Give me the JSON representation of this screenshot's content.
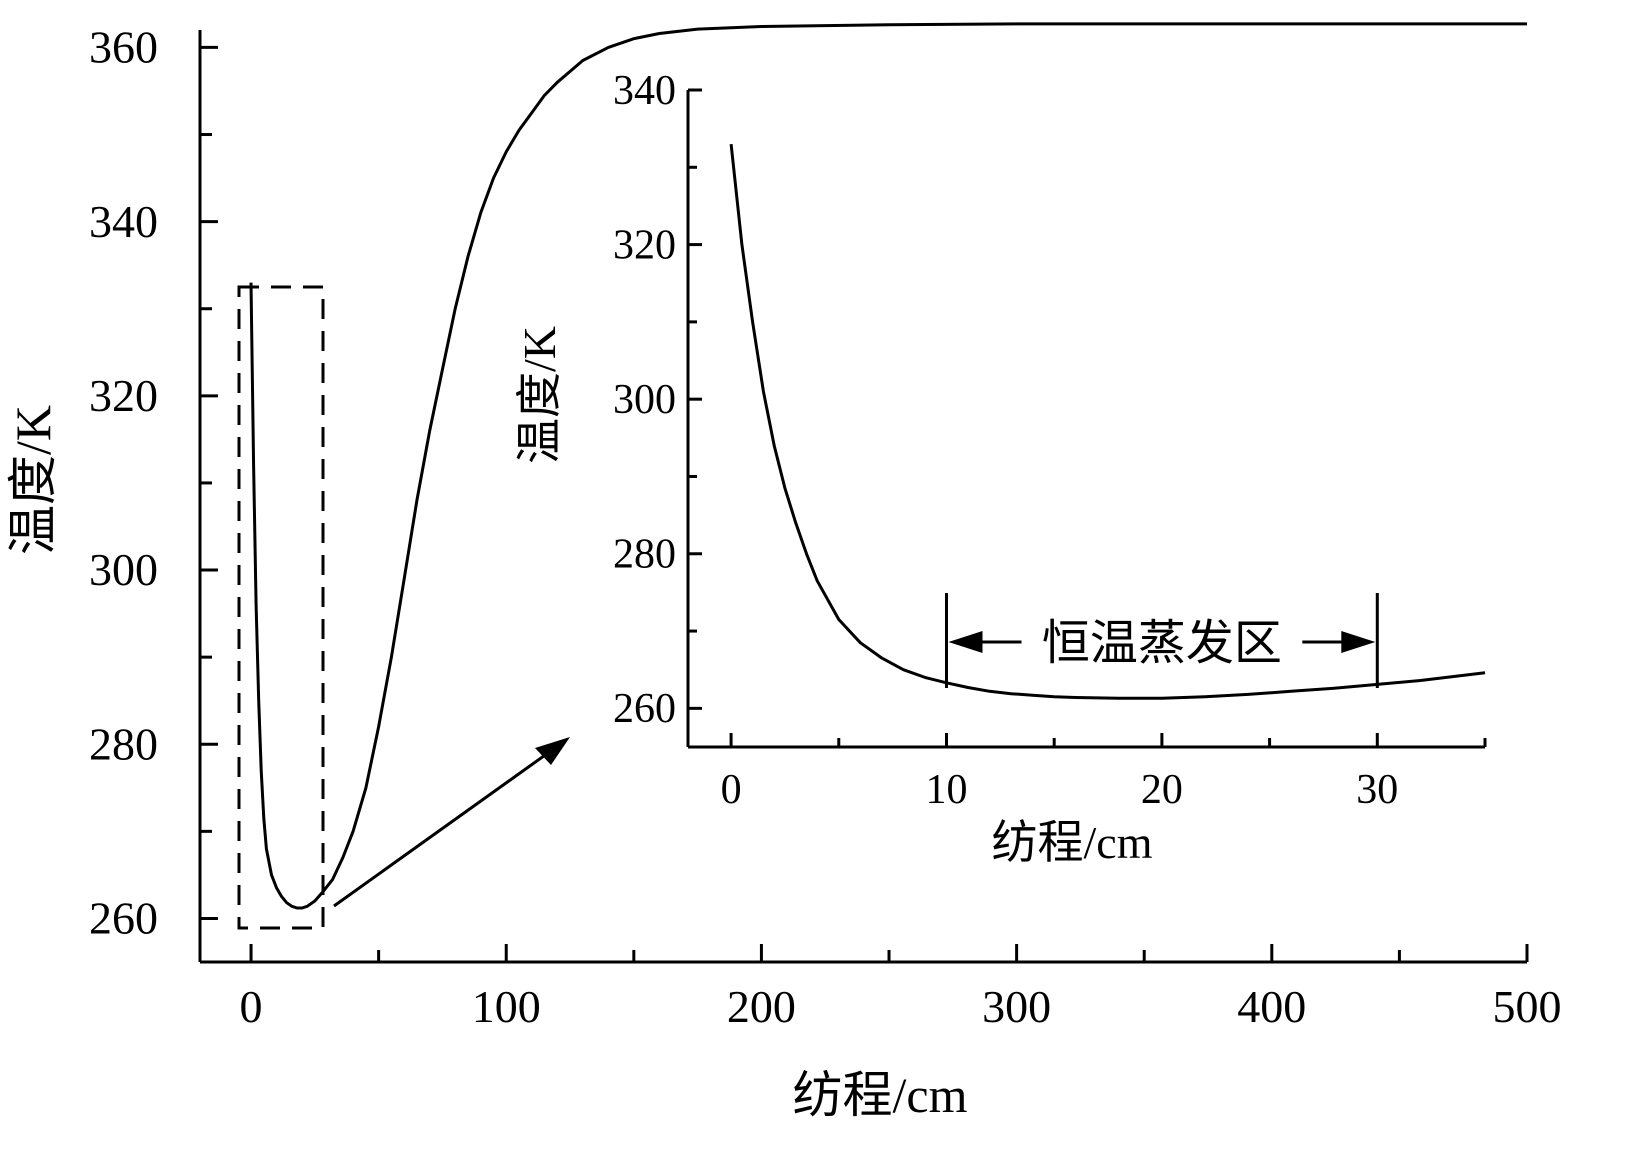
{
  "chart_data": [
    {
      "type": "line",
      "xlabel": "纺程/cm",
      "ylabel": "温度/K",
      "xlim": [
        -20,
        500
      ],
      "ylim": [
        255,
        362
      ],
      "xticks": [
        0,
        100,
        200,
        300,
        400,
        500
      ],
      "xminor": [
        50,
        150,
        250,
        350,
        450
      ],
      "yticks": [
        260,
        280,
        300,
        320,
        340,
        360
      ],
      "yminor": [
        270,
        290,
        310,
        330,
        350
      ],
      "grid": false,
      "series": [
        {
          "x": [
            0,
            1,
            2,
            3,
            4,
            5,
            6,
            8,
            10,
            12,
            14,
            16,
            18,
            20,
            22,
            25,
            28,
            32,
            36,
            40,
            45,
            50,
            55,
            60,
            65,
            70,
            75,
            80,
            85,
            90,
            95,
            100,
            105,
            110,
            115,
            120,
            130,
            140,
            150,
            160,
            175,
            200,
            250,
            300,
            400,
            500
          ],
          "y": [
            333,
            312,
            296,
            285,
            277,
            271.5,
            268,
            265,
            263.5,
            262.5,
            261.8,
            261.4,
            261.2,
            261.2,
            261.4,
            262,
            263,
            264.5,
            267,
            270,
            275,
            282,
            290,
            299,
            308,
            316,
            323,
            330,
            336,
            341,
            345,
            348,
            350.5,
            352.5,
            354.5,
            356,
            358.5,
            360,
            361,
            361.6,
            362.1,
            362.4,
            362.6,
            362.7,
            362.7,
            362.7
          ]
        }
      ]
    },
    {
      "type": "line",
      "xlabel": "纺程/cm",
      "ylabel": "温度/K",
      "xlim": [
        -2,
        35
      ],
      "ylim": [
        255,
        340
      ],
      "xticks": [
        0,
        10,
        20,
        30
      ],
      "xminor": [
        5,
        15,
        25,
        35
      ],
      "yticks": [
        260,
        280,
        300,
        320,
        340
      ],
      "yminor": [
        270,
        290,
        310,
        330
      ],
      "grid": false,
      "series": [
        {
          "x": [
            0,
            0.5,
            1,
            1.5,
            2,
            2.5,
            3,
            3.5,
            4,
            5,
            6,
            7,
            8,
            9,
            10,
            11,
            12,
            13,
            14,
            15,
            16,
            17,
            18,
            19,
            20,
            22,
            24,
            26,
            28,
            30,
            32,
            35
          ],
          "y": [
            333,
            320,
            310,
            301,
            294,
            288.5,
            284,
            280,
            276.5,
            271.5,
            268.5,
            266.5,
            265,
            264,
            263.3,
            262.7,
            262.2,
            261.9,
            261.7,
            261.5,
            261.4,
            261.35,
            261.3,
            261.3,
            261.3,
            261.5,
            261.8,
            262.2,
            262.6,
            263.1,
            263.6,
            264.6
          ]
        }
      ],
      "annotation": {
        "text": "恒温蒸发区",
        "x_start": 10,
        "x_end": 30
      }
    }
  ]
}
